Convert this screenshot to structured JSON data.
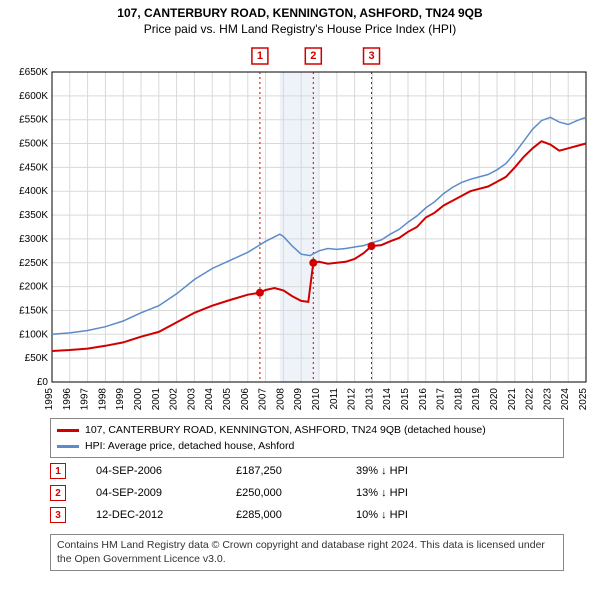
{
  "title": "107, CANTERBURY ROAD, KENNINGTON, ASHFORD, TN24 9QB",
  "subtitle": "Price paid vs. HM Land Registry's House Price Index (HPI)",
  "chart": {
    "type": "line",
    "background_color": "#ffffff",
    "grid_color": "#d9d9d9",
    "axis_color": "#000000",
    "axis_font_size": 10,
    "y": {
      "min": 0,
      "max": 650000,
      "step": 50000,
      "prefix": "£",
      "suffix": "K",
      "divisor": 1000
    },
    "x": {
      "min": 1995,
      "max": 2025,
      "step": 1
    },
    "highlight_band": {
      "from": 2007.8,
      "to": 2010.0,
      "color": "#eef2f9"
    },
    "series": [
      {
        "name": "property",
        "label": "107, CANTERBURY ROAD, KENNINGTON, ASHFORD, TN24 9QB (detached house)",
        "color": "#d00000",
        "width": 2,
        "points": [
          [
            1995,
            65000
          ],
          [
            1996,
            67000
          ],
          [
            1997,
            70000
          ],
          [
            1998,
            76000
          ],
          [
            1999,
            83000
          ],
          [
            2000,
            95000
          ],
          [
            2001,
            105000
          ],
          [
            2002,
            125000
          ],
          [
            2003,
            145000
          ],
          [
            2004,
            160000
          ],
          [
            2005,
            172000
          ],
          [
            2006,
            183000
          ],
          [
            2006.68,
            187250
          ],
          [
            2007,
            193000
          ],
          [
            2007.5,
            197000
          ],
          [
            2008,
            192000
          ],
          [
            2008.5,
            180000
          ],
          [
            2009,
            170000
          ],
          [
            2009.4,
            168000
          ],
          [
            2009.68,
            250000
          ],
          [
            2010,
            252000
          ],
          [
            2010.5,
            248000
          ],
          [
            2011,
            250000
          ],
          [
            2011.5,
            252000
          ],
          [
            2012,
            258000
          ],
          [
            2012.5,
            270000
          ],
          [
            2012.95,
            285000
          ],
          [
            2013.5,
            287000
          ],
          [
            2014,
            295000
          ],
          [
            2014.5,
            302000
          ],
          [
            2015,
            315000
          ],
          [
            2015.5,
            325000
          ],
          [
            2016,
            345000
          ],
          [
            2016.5,
            355000
          ],
          [
            2017,
            370000
          ],
          [
            2017.5,
            380000
          ],
          [
            2018,
            390000
          ],
          [
            2018.5,
            400000
          ],
          [
            2019,
            405000
          ],
          [
            2019.5,
            410000
          ],
          [
            2020,
            420000
          ],
          [
            2020.5,
            430000
          ],
          [
            2021,
            450000
          ],
          [
            2021.5,
            472000
          ],
          [
            2022,
            490000
          ],
          [
            2022.5,
            505000
          ],
          [
            2023,
            498000
          ],
          [
            2023.5,
            485000
          ],
          [
            2024,
            490000
          ],
          [
            2024.5,
            495000
          ],
          [
            2025,
            500000
          ]
        ]
      },
      {
        "name": "hpi",
        "label": "HPI: Average price, detached house, Ashford",
        "color": "#5b8bc9",
        "width": 1.5,
        "points": [
          [
            1995,
            100000
          ],
          [
            1996,
            103000
          ],
          [
            1997,
            108000
          ],
          [
            1998,
            116000
          ],
          [
            1999,
            128000
          ],
          [
            2000,
            145000
          ],
          [
            2001,
            160000
          ],
          [
            2002,
            185000
          ],
          [
            2003,
            215000
          ],
          [
            2004,
            238000
          ],
          [
            2005,
            255000
          ],
          [
            2006,
            272000
          ],
          [
            2007,
            295000
          ],
          [
            2007.8,
            310000
          ],
          [
            2008,
            305000
          ],
          [
            2008.5,
            285000
          ],
          [
            2009,
            268000
          ],
          [
            2009.5,
            265000
          ],
          [
            2010,
            275000
          ],
          [
            2010.5,
            280000
          ],
          [
            2011,
            278000
          ],
          [
            2011.5,
            280000
          ],
          [
            2012,
            283000
          ],
          [
            2012.5,
            286000
          ],
          [
            2013,
            292000
          ],
          [
            2013.5,
            298000
          ],
          [
            2014,
            310000
          ],
          [
            2014.5,
            320000
          ],
          [
            2015,
            335000
          ],
          [
            2015.5,
            348000
          ],
          [
            2016,
            365000
          ],
          [
            2016.5,
            378000
          ],
          [
            2017,
            395000
          ],
          [
            2017.5,
            408000
          ],
          [
            2018,
            418000
          ],
          [
            2018.5,
            425000
          ],
          [
            2019,
            430000
          ],
          [
            2019.5,
            435000
          ],
          [
            2020,
            445000
          ],
          [
            2020.5,
            458000
          ],
          [
            2021,
            480000
          ],
          [
            2021.5,
            505000
          ],
          [
            2022,
            530000
          ],
          [
            2022.5,
            548000
          ],
          [
            2023,
            555000
          ],
          [
            2023.5,
            545000
          ],
          [
            2024,
            540000
          ],
          [
            2024.5,
            548000
          ],
          [
            2025,
            555000
          ]
        ]
      }
    ],
    "markers": [
      {
        "n": "1",
        "x": 2006.68
      },
      {
        "n": "2",
        "x": 2009.68
      },
      {
        "n": "3",
        "x": 2012.95
      }
    ],
    "marker_line_color": "#d00000",
    "marker_line_dash": "2,3"
  },
  "legend": {
    "items": [
      {
        "color": "#d00000",
        "label": "107, CANTERBURY ROAD, KENNINGTON, ASHFORD, TN24 9QB (detached house)"
      },
      {
        "color": "#5b8bc9",
        "label": "HPI: Average price, detached house, Ashford"
      }
    ]
  },
  "transactions": [
    {
      "n": "1",
      "date": "04-SEP-2006",
      "price": "£187,250",
      "diff": "39% ↓ HPI"
    },
    {
      "n": "2",
      "date": "04-SEP-2009",
      "price": "£250,000",
      "diff": "13% ↓ HPI"
    },
    {
      "n": "3",
      "date": "12-DEC-2012",
      "price": "£285,000",
      "diff": "10% ↓ HPI"
    }
  ],
  "credit": "Contains HM Land Registry data © Crown copyright and database right 2024. This data is licensed under the Open Government Licence v3.0."
}
